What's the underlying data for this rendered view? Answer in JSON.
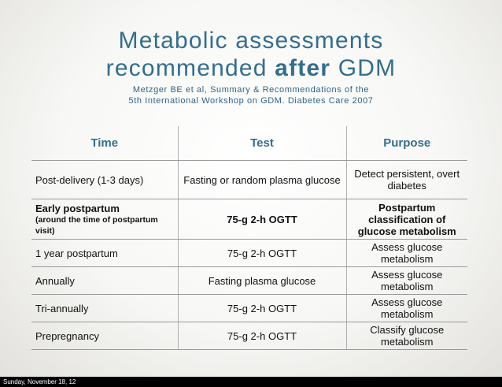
{
  "slide": {
    "title_line1": "Metabolic assessments",
    "title_line2_pre": "recommended ",
    "title_line2_bold": "after",
    "title_line2_post": " GDM",
    "citation_line1": "Metzger BE et al, Summary & Recommendations of the",
    "citation_line2": "5th International Workshop on GDM. Diabetes Care 2007"
  },
  "table": {
    "headers": [
      "Time",
      "Test",
      "Purpose"
    ],
    "rows": [
      {
        "time": "Post-delivery (1-3 days)",
        "test": "Fasting or random plasma glucose",
        "purpose": "Detect persistent, overt diabetes"
      },
      {
        "time": "Early postpartum",
        "time_note": "(around the time of postpartum visit)",
        "test": "75-g 2-h OGTT",
        "purpose": "Postpartum classification of glucose metabolism"
      },
      {
        "time": "1 year postpartum",
        "test": "75-g 2-h OGTT",
        "purpose": "Assess glucose metabolism"
      },
      {
        "time": "Annually",
        "test": "Fasting plasma glucose",
        "purpose": "Assess glucose metabolism"
      },
      {
        "time": "Tri-annually",
        "test": "75-g 2-h OGTT",
        "purpose": "Assess glucose metabolism"
      },
      {
        "time": "Prepregnancy",
        "test": "75-g 2-h OGTT",
        "purpose": "Classify glucose metabolism"
      }
    ]
  },
  "footer": {
    "date": "Sunday, November 18, 12"
  }
}
